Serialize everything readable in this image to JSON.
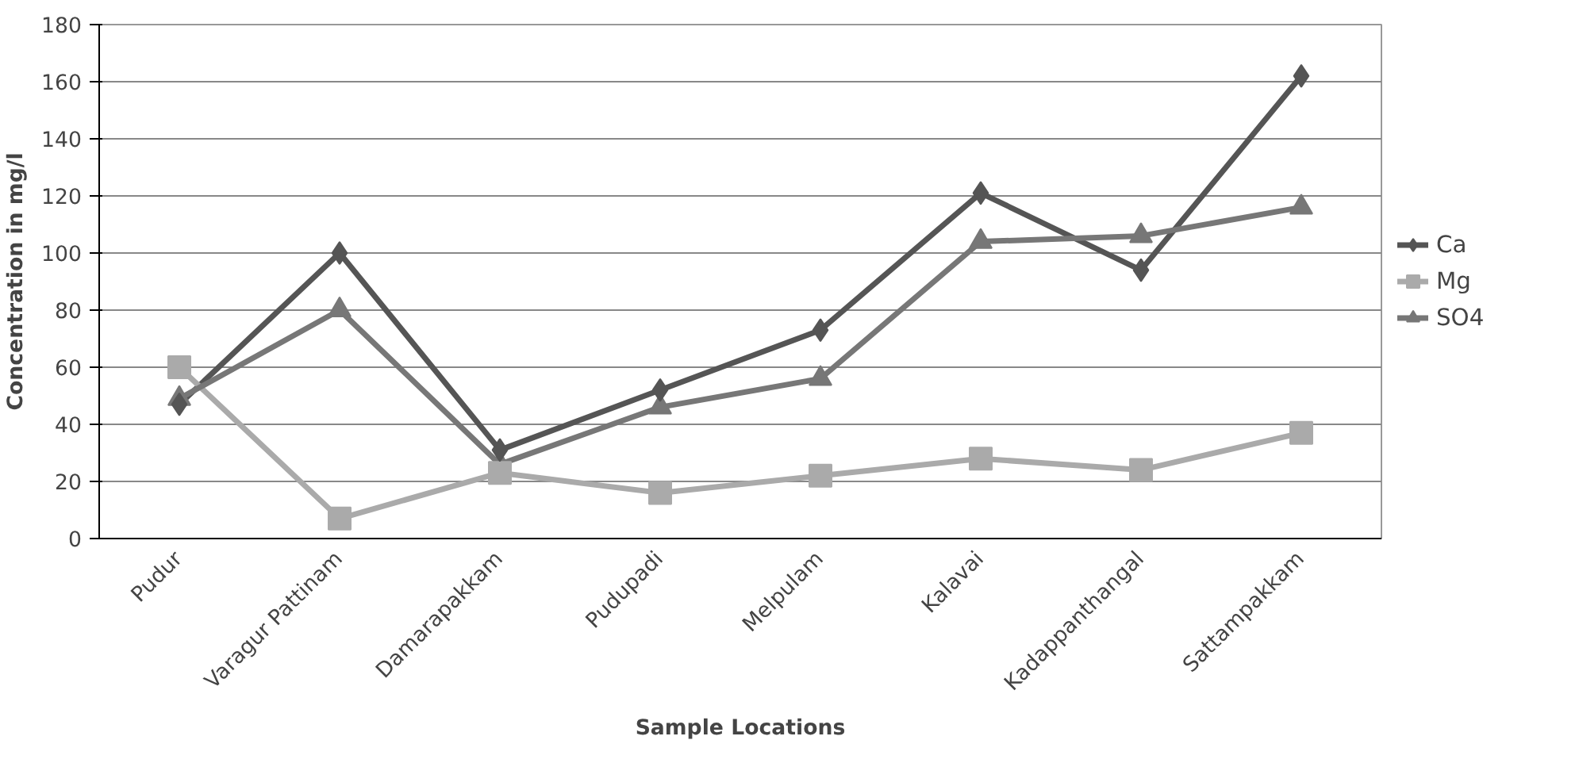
{
  "chart_data": {
    "type": "line",
    "xlabel": "Sample Locations",
    "ylabel": "Concentration in mg/l",
    "categories": [
      "Pudur",
      "Varagur Pattinam",
      "Damarapakkam",
      "Pudupadi",
      "Melpulam",
      "Kalavai",
      "Kadappanthangal",
      "Sattampakkam"
    ],
    "series": [
      {
        "name": "Ca",
        "color": "#555555",
        "marker": "diamond",
        "values": [
          47,
          100,
          31,
          52,
          73,
          121,
          94,
          162
        ]
      },
      {
        "name": "Mg",
        "color": "#aaaaaa",
        "marker": "square",
        "values": [
          60,
          7,
          23,
          16,
          22,
          28,
          24,
          37
        ]
      },
      {
        "name": "SO4",
        "color": "#777777",
        "marker": "triangle",
        "values": [
          49,
          80,
          26,
          46,
          56,
          104,
          106,
          116
        ]
      }
    ],
    "ylim": [
      0,
      180
    ],
    "yticks": [
      0,
      20,
      40,
      60,
      80,
      100,
      120,
      140,
      160,
      180
    ],
    "grid": "y",
    "legend": "right",
    "line_style": "solid"
  }
}
